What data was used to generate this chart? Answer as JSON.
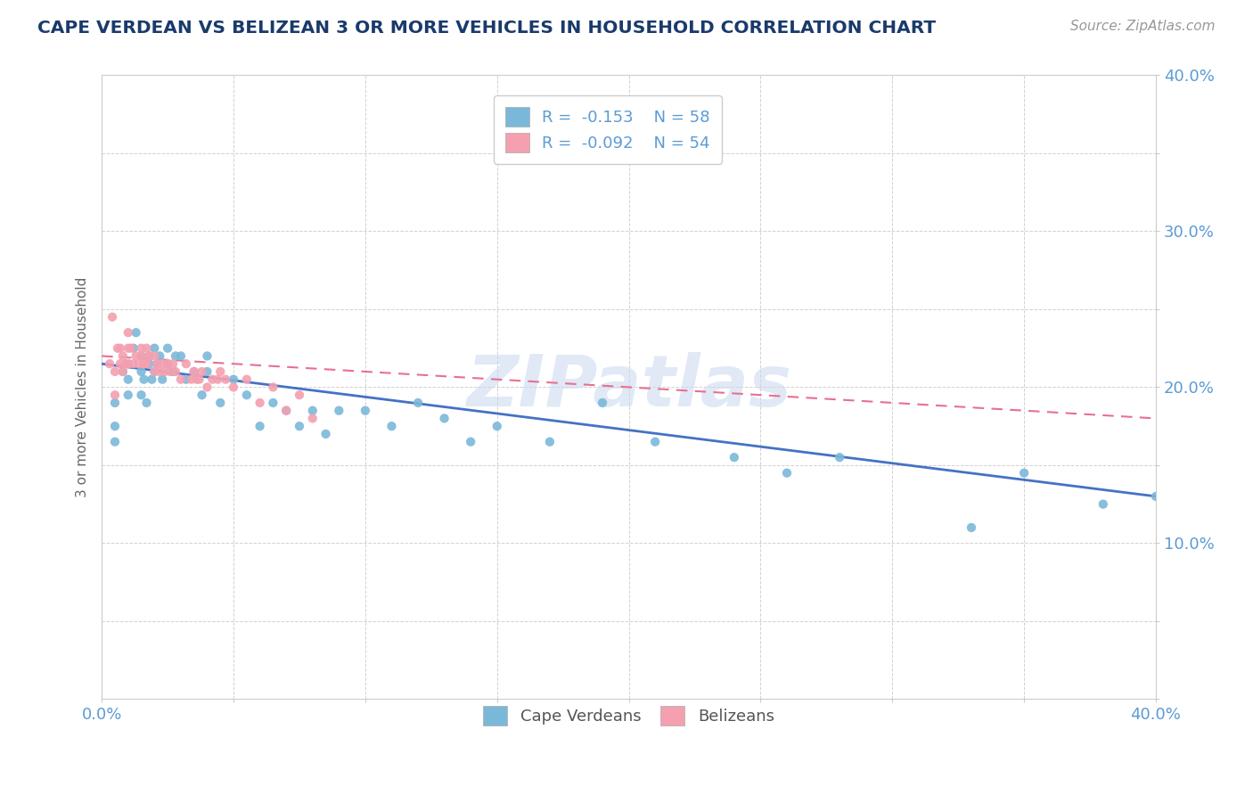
{
  "title": "CAPE VERDEAN VS BELIZEAN 3 OR MORE VEHICLES IN HOUSEHOLD CORRELATION CHART",
  "source_text": "Source: ZipAtlas.com",
  "ylabel": "3 or more Vehicles in Household",
  "xlim": [
    0.0,
    0.4
  ],
  "ylim": [
    0.0,
    0.4
  ],
  "xticks": [
    0.0,
    0.05,
    0.1,
    0.15,
    0.2,
    0.25,
    0.3,
    0.35,
    0.4
  ],
  "yticks": [
    0.0,
    0.05,
    0.1,
    0.15,
    0.2,
    0.25,
    0.3,
    0.35,
    0.4
  ],
  "color_cape": "#7ab8d9",
  "color_belize": "#f4a0b0",
  "color_cape_line": "#4472c4",
  "color_belize_line": "#e87090",
  "cape_verdean_x": [
    0.005,
    0.005,
    0.005,
    0.008,
    0.01,
    0.01,
    0.01,
    0.012,
    0.013,
    0.015,
    0.015,
    0.015,
    0.016,
    0.017,
    0.018,
    0.018,
    0.019,
    0.02,
    0.02,
    0.021,
    0.022,
    0.023,
    0.025,
    0.025,
    0.027,
    0.028,
    0.03,
    0.032,
    0.035,
    0.038,
    0.04,
    0.04,
    0.045,
    0.05,
    0.055,
    0.06,
    0.065,
    0.07,
    0.075,
    0.08,
    0.085,
    0.09,
    0.1,
    0.11,
    0.12,
    0.13,
    0.14,
    0.15,
    0.17,
    0.19,
    0.21,
    0.24,
    0.26,
    0.28,
    0.33,
    0.35,
    0.38,
    0.4
  ],
  "cape_verdean_y": [
    0.19,
    0.175,
    0.165,
    0.21,
    0.215,
    0.205,
    0.195,
    0.225,
    0.235,
    0.22,
    0.21,
    0.195,
    0.205,
    0.19,
    0.215,
    0.22,
    0.205,
    0.21,
    0.225,
    0.215,
    0.22,
    0.205,
    0.225,
    0.215,
    0.21,
    0.22,
    0.22,
    0.205,
    0.21,
    0.195,
    0.21,
    0.22,
    0.19,
    0.205,
    0.195,
    0.175,
    0.19,
    0.185,
    0.175,
    0.185,
    0.17,
    0.185,
    0.185,
    0.175,
    0.19,
    0.18,
    0.165,
    0.175,
    0.165,
    0.19,
    0.165,
    0.155,
    0.145,
    0.155,
    0.11,
    0.145,
    0.125,
    0.13
  ],
  "belizean_x": [
    0.003,
    0.004,
    0.005,
    0.005,
    0.006,
    0.007,
    0.007,
    0.008,
    0.008,
    0.009,
    0.01,
    0.01,
    0.01,
    0.011,
    0.012,
    0.013,
    0.014,
    0.015,
    0.015,
    0.016,
    0.016,
    0.017,
    0.017,
    0.018,
    0.018,
    0.02,
    0.02,
    0.021,
    0.022,
    0.023,
    0.024,
    0.025,
    0.026,
    0.027,
    0.028,
    0.03,
    0.032,
    0.034,
    0.035,
    0.036,
    0.037,
    0.038,
    0.04,
    0.042,
    0.044,
    0.045,
    0.047,
    0.05,
    0.055,
    0.06,
    0.065,
    0.07,
    0.075,
    0.08
  ],
  "belizean_y": [
    0.215,
    0.245,
    0.21,
    0.195,
    0.225,
    0.215,
    0.225,
    0.21,
    0.22,
    0.215,
    0.225,
    0.235,
    0.215,
    0.225,
    0.215,
    0.22,
    0.215,
    0.225,
    0.22,
    0.215,
    0.215,
    0.225,
    0.215,
    0.22,
    0.22,
    0.21,
    0.22,
    0.215,
    0.21,
    0.215,
    0.21,
    0.215,
    0.21,
    0.215,
    0.21,
    0.205,
    0.215,
    0.205,
    0.21,
    0.205,
    0.205,
    0.21,
    0.2,
    0.205,
    0.205,
    0.21,
    0.205,
    0.2,
    0.205,
    0.19,
    0.2,
    0.185,
    0.195,
    0.18
  ]
}
